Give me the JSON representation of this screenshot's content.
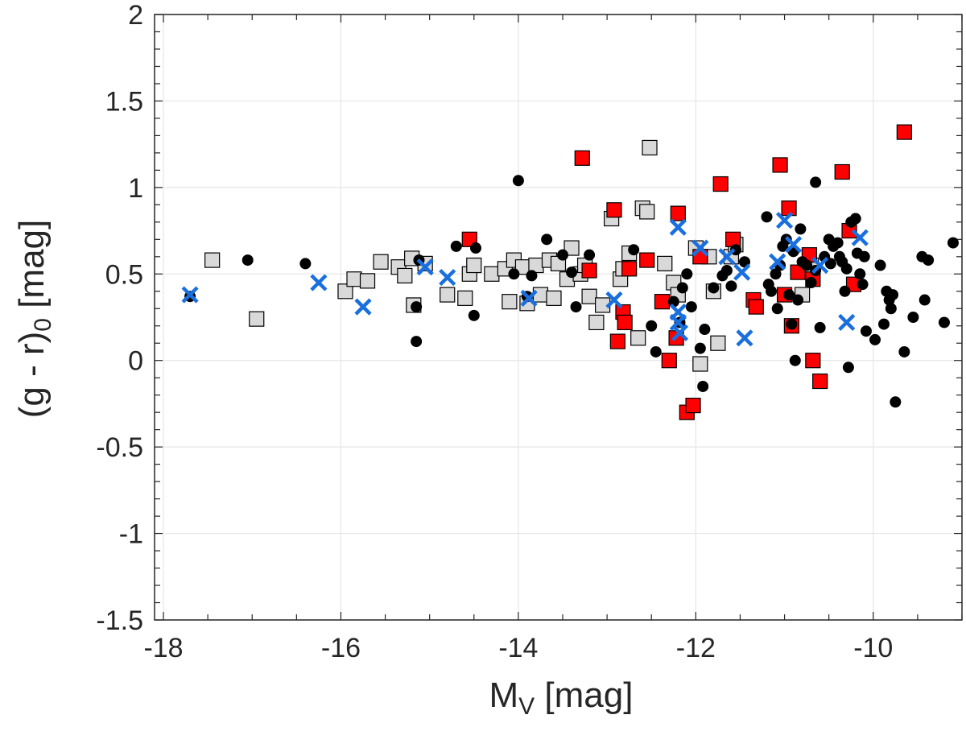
{
  "chart_data": {
    "type": "scatter",
    "title": "",
    "xlabel": {
      "main": "M",
      "sub": "V",
      "unit": " [mag]"
    },
    "ylabel": {
      "main": "(g - r)",
      "sub": "0",
      "unit": " [mag]"
    },
    "xlim": [
      -18.1,
      -9.0
    ],
    "ylim": [
      -1.5,
      2.0
    ],
    "xticks": [
      -18,
      -16,
      -14,
      -12,
      -10
    ],
    "xtick_labels": [
      "-18",
      "-16",
      "-14",
      "-12",
      "-10"
    ],
    "yticks": [
      -1.5,
      -1,
      -0.5,
      0,
      0.5,
      1,
      1.5,
      2
    ],
    "ytick_labels": [
      "-1.5",
      "-1",
      "-0.5",
      "0",
      "0.5",
      "1",
      "1.5",
      "2"
    ],
    "grid": true,
    "series": [
      {
        "name": "gray-squares",
        "marker": "square",
        "color": "#d9d9d9",
        "points": [
          [
            -17.45,
            0.58
          ],
          [
            -16.95,
            0.24
          ],
          [
            -15.95,
            0.4
          ],
          [
            -15.85,
            0.47
          ],
          [
            -15.7,
            0.46
          ],
          [
            -15.55,
            0.57
          ],
          [
            -15.35,
            0.54
          ],
          [
            -15.28,
            0.49
          ],
          [
            -15.2,
            0.59
          ],
          [
            -15.18,
            0.32
          ],
          [
            -15.05,
            0.56
          ],
          [
            -14.8,
            0.38
          ],
          [
            -14.6,
            0.36
          ],
          [
            -14.55,
            0.5
          ],
          [
            -14.5,
            0.55
          ],
          [
            -14.3,
            0.5
          ],
          [
            -14.15,
            0.53
          ],
          [
            -14.1,
            0.34
          ],
          [
            -14.05,
            0.58
          ],
          [
            -13.95,
            0.54
          ],
          [
            -13.9,
            0.33
          ],
          [
            -13.8,
            0.55
          ],
          [
            -13.75,
            0.38
          ],
          [
            -13.65,
            0.58
          ],
          [
            -13.6,
            0.36
          ],
          [
            -13.55,
            0.56
          ],
          [
            -13.45,
            0.47
          ],
          [
            -13.4,
            0.65
          ],
          [
            -13.3,
            0.5
          ],
          [
            -13.25,
            0.55
          ],
          [
            -13.2,
            0.37
          ],
          [
            -13.12,
            0.22
          ],
          [
            -13.05,
            0.32
          ],
          [
            -12.95,
            0.82
          ],
          [
            -12.85,
            0.47
          ],
          [
            -12.82,
            0.53
          ],
          [
            -12.75,
            0.62
          ],
          [
            -12.65,
            0.13
          ],
          [
            -12.6,
            0.88
          ],
          [
            -12.55,
            0.86
          ],
          [
            -12.52,
            1.23
          ],
          [
            -12.35,
            0.56
          ],
          [
            -12.25,
            0.45
          ],
          [
            -12.2,
            0.38
          ],
          [
            -12.0,
            0.65
          ],
          [
            -11.95,
            -0.02
          ],
          [
            -11.85,
            0.6
          ],
          [
            -11.8,
            0.4
          ],
          [
            -11.75,
            0.1
          ],
          [
            -11.6,
            0.6
          ],
          [
            -11.55,
            0.67
          ],
          [
            -10.8,
            0.38
          ],
          [
            -10.7,
            0.55
          ]
        ]
      },
      {
        "name": "red-squares",
        "marker": "square",
        "color": "#ff0000",
        "points": [
          [
            -14.55,
            0.7
          ],
          [
            -13.28,
            1.17
          ],
          [
            -13.2,
            0.52
          ],
          [
            -12.92,
            0.87
          ],
          [
            -12.88,
            0.11
          ],
          [
            -12.82,
            0.28
          ],
          [
            -12.8,
            0.22
          ],
          [
            -12.75,
            0.53
          ],
          [
            -12.55,
            0.58
          ],
          [
            -12.38,
            0.34
          ],
          [
            -12.3,
            0.0
          ],
          [
            -12.2,
            0.85
          ],
          [
            -12.22,
            0.13
          ],
          [
            -12.1,
            -0.3
          ],
          [
            -12.03,
            -0.26
          ],
          [
            -11.95,
            0.6
          ],
          [
            -11.72,
            1.02
          ],
          [
            -11.58,
            0.7
          ],
          [
            -11.35,
            0.35
          ],
          [
            -11.32,
            0.31
          ],
          [
            -11.05,
            1.13
          ],
          [
            -11.0,
            0.38
          ],
          [
            -10.95,
            0.88
          ],
          [
            -10.92,
            0.2
          ],
          [
            -10.85,
            0.51
          ],
          [
            -10.72,
            0.61
          ],
          [
            -10.68,
            0.47
          ],
          [
            -10.68,
            0.0
          ],
          [
            -10.6,
            -0.12
          ],
          [
            -10.35,
            1.09
          ],
          [
            -10.27,
            0.75
          ],
          [
            -10.22,
            0.44
          ],
          [
            -9.65,
            1.32
          ]
        ]
      },
      {
        "name": "black-circles",
        "marker": "circle",
        "color": "#000000",
        "points": [
          [
            -17.7,
            0.37
          ],
          [
            -17.05,
            0.58
          ],
          [
            -16.4,
            0.56
          ],
          [
            -15.15,
            0.31
          ],
          [
            -15.12,
            0.58
          ],
          [
            -15.15,
            0.11
          ],
          [
            -14.7,
            0.66
          ],
          [
            -14.5,
            0.26
          ],
          [
            -14.48,
            0.65
          ],
          [
            -14.05,
            0.5
          ],
          [
            -14.0,
            1.04
          ],
          [
            -13.9,
            0.37
          ],
          [
            -13.85,
            0.49
          ],
          [
            -13.68,
            0.7
          ],
          [
            -13.5,
            0.61
          ],
          [
            -13.4,
            0.51
          ],
          [
            -13.35,
            0.31
          ],
          [
            -13.2,
            0.61
          ],
          [
            -12.7,
            0.64
          ],
          [
            -12.5,
            0.2
          ],
          [
            -12.45,
            0.05
          ],
          [
            -12.25,
            0.34
          ],
          [
            -12.18,
            0.22
          ],
          [
            -12.15,
            0.42
          ],
          [
            -12.1,
            0.5
          ],
          [
            -12.05,
            0.31
          ],
          [
            -11.95,
            0.07
          ],
          [
            -11.92,
            -0.15
          ],
          [
            -11.9,
            0.18
          ],
          [
            -11.8,
            0.42
          ],
          [
            -11.7,
            0.49
          ],
          [
            -11.65,
            0.52
          ],
          [
            -11.6,
            0.43
          ],
          [
            -11.55,
            0.64
          ],
          [
            -11.45,
            0.57
          ],
          [
            -11.2,
            0.83
          ],
          [
            -11.18,
            0.44
          ],
          [
            -11.15,
            0.4
          ],
          [
            -11.1,
            0.5
          ],
          [
            -11.08,
            0.3
          ],
          [
            -11.05,
            0.55
          ],
          [
            -11.02,
            0.66
          ],
          [
            -10.98,
            0.7
          ],
          [
            -10.95,
            0.38
          ],
          [
            -10.92,
            0.21
          ],
          [
            -10.9,
            0.63
          ],
          [
            -10.88,
            0.0
          ],
          [
            -10.85,
            0.35
          ],
          [
            -10.82,
            0.76
          ],
          [
            -10.8,
            0.57
          ],
          [
            -10.75,
            0.55
          ],
          [
            -10.7,
            0.45
          ],
          [
            -10.65,
            0.52
          ],
          [
            -10.65,
            1.03
          ],
          [
            -10.6,
            0.19
          ],
          [
            -10.55,
            0.6
          ],
          [
            -10.5,
            0.7
          ],
          [
            -10.48,
            0.56
          ],
          [
            -10.45,
            0.66
          ],
          [
            -10.4,
            0.68
          ],
          [
            -10.38,
            0.6
          ],
          [
            -10.35,
            0.57
          ],
          [
            -10.32,
            0.4
          ],
          [
            -10.3,
            0.53
          ],
          [
            -10.28,
            -0.04
          ],
          [
            -10.25,
            0.8
          ],
          [
            -10.2,
            0.82
          ],
          [
            -10.18,
            0.62
          ],
          [
            -10.15,
            0.5
          ],
          [
            -10.12,
            0.44
          ],
          [
            -10.1,
            0.6
          ],
          [
            -10.08,
            0.17
          ],
          [
            -9.98,
            0.12
          ],
          [
            -9.92,
            0.55
          ],
          [
            -9.88,
            0.21
          ],
          [
            -9.85,
            0.4
          ],
          [
            -9.82,
            0.35
          ],
          [
            -9.8,
            0.3
          ],
          [
            -9.78,
            0.38
          ],
          [
            -9.75,
            -0.24
          ],
          [
            -9.65,
            0.05
          ],
          [
            -9.55,
            0.25
          ],
          [
            -9.45,
            0.6
          ],
          [
            -9.42,
            0.35
          ],
          [
            -9.38,
            0.58
          ],
          [
            -9.2,
            0.22
          ],
          [
            -9.1,
            0.68
          ]
        ]
      },
      {
        "name": "blue-crosses",
        "marker": "x",
        "color": "#1a6fdf",
        "points": [
          [
            -17.7,
            0.38
          ],
          [
            -16.25,
            0.45
          ],
          [
            -15.75,
            0.31
          ],
          [
            -15.05,
            0.54
          ],
          [
            -14.8,
            0.48
          ],
          [
            -13.88,
            0.36
          ],
          [
            -12.92,
            0.35
          ],
          [
            -12.2,
            0.77
          ],
          [
            -12.2,
            0.28
          ],
          [
            -12.2,
            0.22
          ],
          [
            -12.18,
            0.16
          ],
          [
            -11.95,
            0.65
          ],
          [
            -11.65,
            0.6
          ],
          [
            -11.48,
            0.51
          ],
          [
            -11.45,
            0.13
          ],
          [
            -11.08,
            0.57
          ],
          [
            -11.0,
            0.81
          ],
          [
            -10.9,
            0.67
          ],
          [
            -10.6,
            0.55
          ],
          [
            -10.3,
            0.22
          ],
          [
            -10.15,
            0.71
          ]
        ]
      }
    ]
  }
}
